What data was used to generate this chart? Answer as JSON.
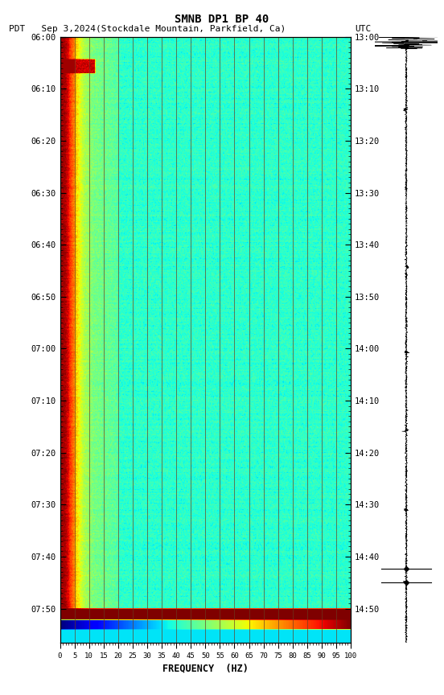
{
  "title": "SMNB DP1 BP 40",
  "subtitle_left": "PDT   Sep 3,2024(Stockdale Mountain, Parkfield, Ca)",
  "subtitle_right": "UTC",
  "freq_min": 0,
  "freq_max": 100,
  "xlabel": "FREQUENCY  (HZ)",
  "freq_ticks": [
    0,
    5,
    10,
    15,
    20,
    25,
    30,
    35,
    40,
    45,
    50,
    55,
    60,
    65,
    70,
    75,
    80,
    85,
    90,
    95,
    100
  ],
  "time_ticks_pdt": [
    "06:00",
    "06:10",
    "06:20",
    "06:30",
    "06:40",
    "06:50",
    "07:00",
    "07:10",
    "07:20",
    "07:30",
    "07:40",
    "07:50"
  ],
  "time_ticks_utc": [
    "13:00",
    "13:10",
    "13:20",
    "13:30",
    "13:40",
    "13:50",
    "14:00",
    "14:10",
    "14:20",
    "14:30",
    "14:40",
    "14:50"
  ],
  "bg_color": "white",
  "vertical_line_freq": [
    5,
    10,
    15,
    20,
    25,
    30,
    35,
    40,
    45,
    50,
    55,
    60,
    65,
    70,
    75,
    80,
    85,
    90,
    95
  ],
  "colormap": "jet",
  "seed": 42
}
